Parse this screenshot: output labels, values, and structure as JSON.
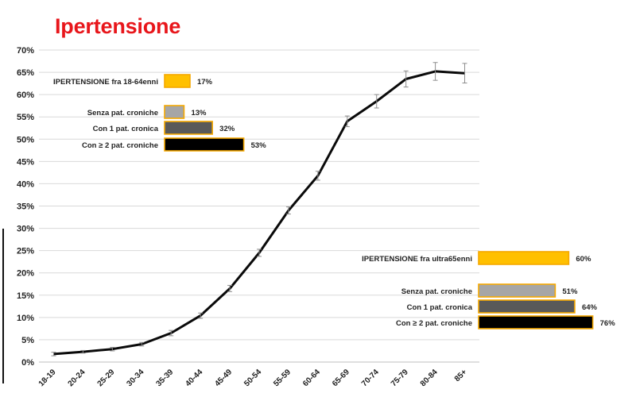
{
  "title": "Ipertensione",
  "colors": {
    "title": "#e8161b",
    "line": "#0a0a0a",
    "grid": "#d9d9d9",
    "bar_total": "#ffc000",
    "bar_border": "#f5a800",
    "bar_0": "#a6a6a6",
    "bar_1": "#595959",
    "bar_2": "#000000"
  },
  "chart_data": {
    "type": "line",
    "title": "Ipertensione",
    "xlabel": "",
    "ylabel": "",
    "x": [
      "18-19",
      "20-24",
      "25-29",
      "30-34",
      "35-39",
      "40-44",
      "45-49",
      "50-54",
      "55-59",
      "60-64",
      "65-69",
      "70-74",
      "75-79",
      "80-84",
      "85+"
    ],
    "y_ticks": [
      "0%",
      "5%",
      "10%",
      "15%",
      "20%",
      "25%",
      "30%",
      "35%",
      "40%",
      "45%",
      "50%",
      "55%",
      "60%",
      "65%",
      "70%"
    ],
    "ylim": [
      0,
      70
    ],
    "grid": true,
    "series": [
      {
        "values": [
          1.8,
          2.3,
          2.9,
          4.0,
          6.5,
          10.4,
          16.5,
          24.5,
          34.0,
          41.8,
          54.0,
          58.5,
          63.5,
          65.2,
          64.8
        ],
        "error": [
          0.4,
          0.3,
          0.4,
          0.4,
          0.6,
          0.6,
          0.7,
          0.8,
          0.8,
          1.0,
          1.2,
          1.5,
          1.8,
          2.0,
          2.2
        ]
      }
    ],
    "insets": [
      {
        "total": {
          "label": "IPERTENSIONE fra 18-64enni",
          "value": 17,
          "value_label": "17%"
        },
        "rows": [
          {
            "label": "Senza pat. croniche",
            "value": 13,
            "value_label": "13%"
          },
          {
            "label": "Con 1 pat. cronica",
            "value": 32,
            "value_label": "32%"
          },
          {
            "label": "Con ≥ 2 pat. croniche",
            "value": 53,
            "value_label": "53%"
          }
        ]
      },
      {
        "total": {
          "label": "IPERTENSIONE fra ultra65enni",
          "value": 60,
          "value_label": "60%"
        },
        "rows": [
          {
            "label": "Senza pat. croniche",
            "value": 51,
            "value_label": "51%"
          },
          {
            "label": "Con 1 pat. cronica",
            "value": 64,
            "value_label": "64%"
          },
          {
            "label": "Con ≥ 2 pat. croniche",
            "value": 76,
            "value_label": "76%"
          }
        ]
      }
    ]
  }
}
